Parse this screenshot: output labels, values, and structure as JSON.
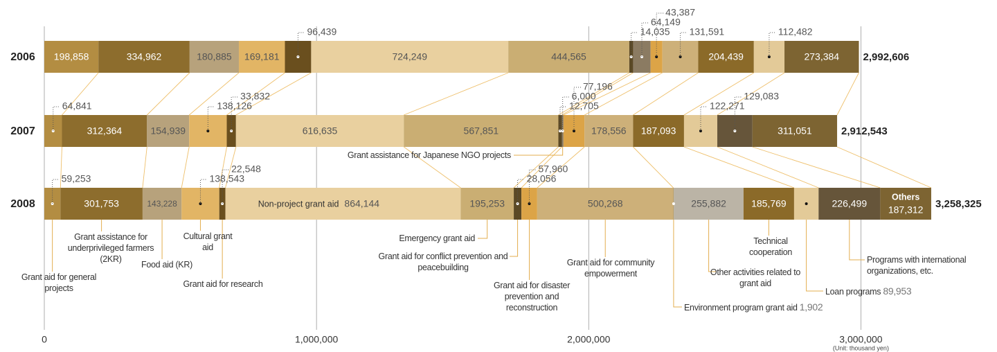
{
  "chart_data": {
    "type": "bar",
    "orientation": "horizontal",
    "stacked": true,
    "categories": [
      "2006",
      "2007",
      "2008"
    ],
    "xlim": [
      0,
      3500000
    ],
    "xticks": [
      0,
      {
        "value": 1000000,
        "label": "1,000,000"
      },
      {
        "value": 2000000,
        "label": "2,000,000"
      },
      {
        "value": 3000000,
        "label": "3,000,000"
      }
    ],
    "grid": true,
    "unit_note": "(Unit: thousand yen)",
    "totals": {
      "values": [
        2992606,
        2912543,
        3258325
      ],
      "value_labels": [
        "2,992,606",
        "2,912,543",
        "3,258,325"
      ]
    },
    "series": [
      {
        "name": "Grant aid for general projects",
        "color": "#b38d42",
        "values": [
          198858,
          64841,
          59253
        ],
        "value_labels": [
          "198,858",
          "64,841",
          "59,253"
        ]
      },
      {
        "name": "Grant assistance for underprivileged farmers (2KR)",
        "color": "#8d6d2d",
        "values": [
          334962,
          312364,
          301753
        ],
        "value_labels": [
          "334,962",
          "312,364",
          "301,753"
        ]
      },
      {
        "name": "Food aid (KR)",
        "color": "#b7a27c",
        "values": [
          180885,
          154939,
          143228
        ],
        "value_labels": [
          "180,885",
          "154,939",
          "143,228"
        ]
      },
      {
        "name": "Cultural grant aid",
        "color": "#e2b565",
        "values": [
          169181,
          138126,
          138543
        ],
        "value_labels": [
          "169,181",
          "138,126",
          "138,543"
        ]
      },
      {
        "name": "Grant aid for research",
        "color": "#6a4f1e",
        "values": [
          96439,
          33832,
          22548
        ],
        "value_labels": [
          "96,439",
          "33,832",
          "22,548"
        ]
      },
      {
        "name": "Non-project grant aid",
        "color": "#e9d09f",
        "values": [
          724249,
          616635,
          864144
        ],
        "value_labels": [
          "724,249",
          "616,635",
          "864,144"
        ]
      },
      {
        "name": "Emergency grant aid",
        "color": "#caae73",
        "values": [
          444565,
          567851,
          195253
        ],
        "value_labels": [
          "444,565",
          "567,851",
          "195,253"
        ]
      },
      {
        "name": "Grant aid for conflict prevention and peacebuilding",
        "color": "#5b4925",
        "values": [
          14035,
          12705,
          28056
        ],
        "value_labels": [
          "14,035",
          "12,705",
          "28,056"
        ]
      },
      {
        "name": "Grant assistance for Japanese NGO projects",
        "color": "#8b7b62",
        "values": [
          64149,
          6000,
          null
        ],
        "value_labels": [
          "64,149",
          "6,000",
          null
        ]
      },
      {
        "name": "Grant aid for disaster prevention and reconstruction",
        "color": "#dca447",
        "values": [
          43387,
          77196,
          57960
        ],
        "value_labels": [
          "43,387",
          "77,196",
          "57,960"
        ]
      },
      {
        "name": "Grant aid for community empowerment",
        "color": "#cdb079",
        "values": [
          131591,
          178556,
          500268
        ],
        "value_labels": [
          "131,591",
          "178,556",
          "500,268"
        ]
      },
      {
        "name": "Environment program grant aid",
        "color": "#a18a52",
        "values": [
          null,
          null,
          1902
        ],
        "value_labels": [
          null,
          null,
          "1,902"
        ]
      },
      {
        "name": "Other activities related to grant aid",
        "color": "#bbb4a6",
        "values": [
          null,
          null,
          255882
        ],
        "value_labels": [
          null,
          null,
          "255,882"
        ]
      },
      {
        "name": "Technical cooperation",
        "color": "#8b6a29",
        "values": [
          204439,
          187093,
          185769
        ],
        "value_labels": [
          "204,439",
          "187,093",
          "185,769"
        ]
      },
      {
        "name": "Loan programs",
        "color": "#e3ca98",
        "values": [
          112482,
          122271,
          89953
        ],
        "value_labels": [
          "112,482",
          "122,271",
          "89,953"
        ]
      },
      {
        "name": "Programs with international organizations, etc.",
        "color": "#66553a",
        "values": [
          null,
          129083,
          226499
        ],
        "value_labels": [
          null,
          "129,083",
          "226,499"
        ]
      },
      {
        "name": "Others",
        "color": "#7d6432",
        "values": [
          273384,
          311051,
          187312
        ],
        "value_labels": [
          "273,384",
          "311,051",
          "187,312"
        ]
      }
    ]
  }
}
